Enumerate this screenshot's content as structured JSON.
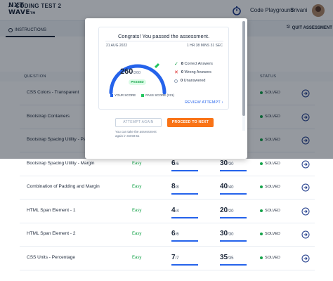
{
  "navbar": {
    "logo_line1": "NXT",
    "logo_line2": "WAVE",
    "logo_suffix": "TM",
    "code_playground": "Code Playground",
    "user_name": "Srivani"
  },
  "subheader": {
    "title": "CODING TEST 2",
    "instructions_tab": "INSTRUCTIONS",
    "quit_label": "QUIT ASSESSMENT"
  },
  "table": {
    "headers": {
      "question": "QUESTION",
      "status": "STATUS"
    },
    "rows": [
      {
        "name": "CSS Colors - Transparent",
        "difficulty": "",
        "score": "",
        "score_max": "",
        "total": "",
        "total_max": "",
        "status": "SOLVED"
      },
      {
        "name": "Bootstrap Containers",
        "difficulty": "",
        "score": "",
        "score_max": "",
        "total": "",
        "total_max": "",
        "status": "SOLVED"
      },
      {
        "name": "Bootstrap Spacing Utility - Padding",
        "difficulty": "",
        "score": "",
        "score_max": "",
        "total": "",
        "total_max": "",
        "status": "SOLVED"
      },
      {
        "name": "Bootstrap Spacing Utility - Margin",
        "difficulty": "Easy",
        "score": "6",
        "score_max": "/6",
        "total": "30",
        "total_max": "/30",
        "status": "SOLVED"
      },
      {
        "name": "Combination of Padding and Margin",
        "difficulty": "Easy",
        "score": "8",
        "score_max": "/8",
        "total": "40",
        "total_max": "/40",
        "status": "SOLVED"
      },
      {
        "name": "HTML Span Element - 1",
        "difficulty": "Easy",
        "score": "4",
        "score_max": "/4",
        "total": "20",
        "total_max": "/20",
        "status": "SOLVED"
      },
      {
        "name": "HTML Span Element - 2",
        "difficulty": "Easy",
        "score": "6",
        "score_max": "/6",
        "total": "30",
        "total_max": "/30",
        "status": "SOLVED"
      },
      {
        "name": "CSS Units - Percentage",
        "difficulty": "Easy",
        "score": "7",
        "score_max": "/7",
        "total": "35",
        "total_max": "/35",
        "status": "SOLVED"
      }
    ]
  },
  "modal": {
    "congrats": "Congrats! You passed the assessment.",
    "date": "21 AUG 2022",
    "time_taken": "1 HR 38 MINS 31 SEC",
    "score": "260",
    "score_max": "/260",
    "score_fraction": 1.0,
    "passed_badge": "PASSED",
    "stats": [
      {
        "count": "8",
        "label": "Correct Answers",
        "icon": "check-icon",
        "color": "#16a34a"
      },
      {
        "count": "0",
        "label": "Wrong Answers",
        "icon": "cross-icon",
        "color": "#dc2626"
      },
      {
        "count": "0",
        "label": "Unanswered",
        "icon": "circle-icon",
        "color": "#94a3b8"
      }
    ],
    "legend_your_score": "YOUR SCORE",
    "legend_pass_score": "PASS SCORE (221)",
    "review_label": "REVIEW ATTEMPT",
    "attempt_again_label": "ATTEMPT AGAIN",
    "proceed_label": "PROCEED TO NEXT",
    "retake_line1": "You can take the assessment",
    "retake_line2": "again in 03:59:51"
  },
  "colors": {
    "accent": "#2563eb",
    "success": "#16a34a",
    "orange": "#f97316",
    "pass_marker": "#22c55e"
  }
}
